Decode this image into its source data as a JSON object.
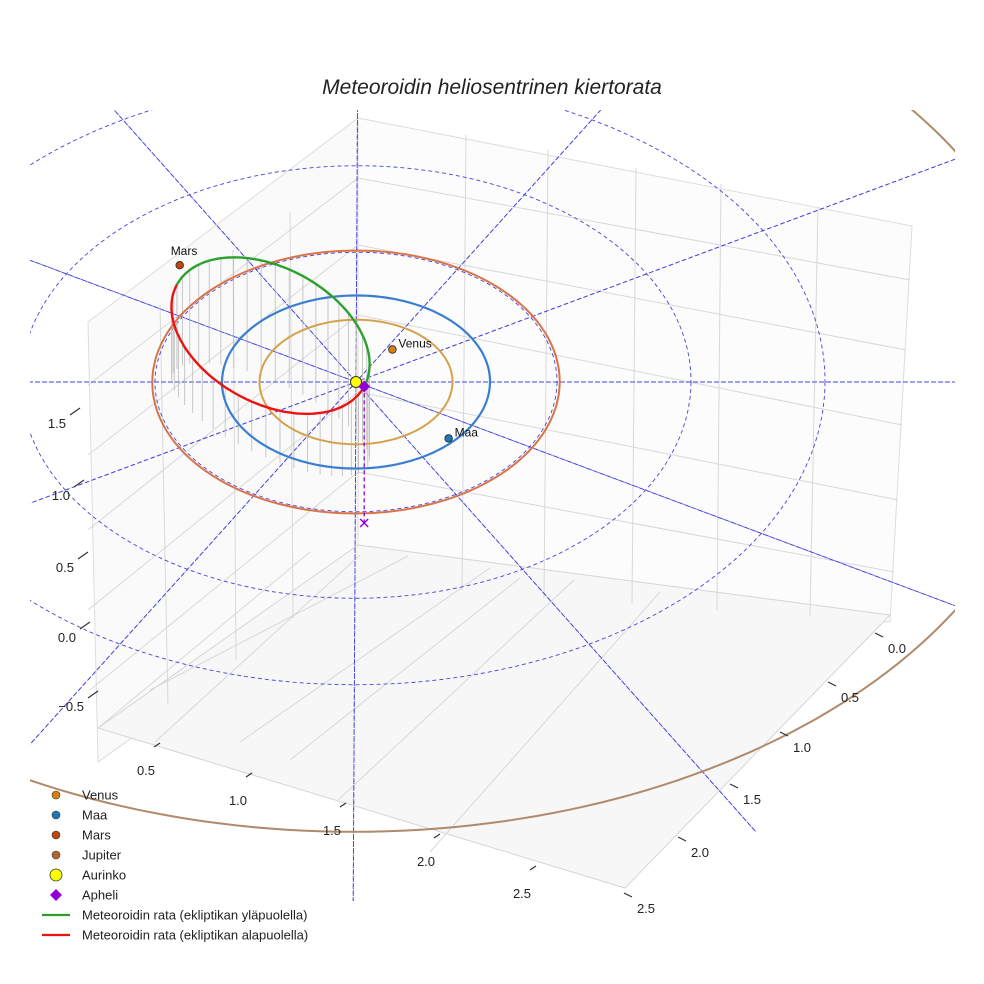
{
  "chart_data": {
    "type": "3d-orbit",
    "title": "Meteoroidin heliosentrinen kiertorata",
    "axes": {
      "x_ticks": [
        "0.5",
        "1.0",
        "1.5",
        "2.0",
        "2.5"
      ],
      "y_ticks": [
        "0.0",
        "0.5",
        "1.0",
        "1.5",
        "2.0",
        "2.5"
      ],
      "z_ticks": [
        "−0.5",
        "0.0",
        "0.5",
        "1.0",
        "1.5"
      ]
    },
    "orbits": [
      {
        "name": "Venus orbit",
        "radius_au": 0.72,
        "color": "#d4a24c"
      },
      {
        "name": "Maa orbit",
        "radius_au": 1.0,
        "color": "#3a7fcf"
      },
      {
        "name": "Mars orbit",
        "radius_au": 1.52,
        "color": "#d9734a"
      },
      {
        "name": "Jupiter orbit",
        "radius_au": 5.2,
        "color": "#b08a6a"
      }
    ],
    "bodies": [
      {
        "name": "Venus",
        "label": "Venus",
        "color": "#d4820c"
      },
      {
        "name": "Maa",
        "label": "Maa",
        "color": "#1f77b4"
      },
      {
        "name": "Mars",
        "label": "Mars",
        "color": "#c1440e"
      }
    ],
    "meteoroid": {
      "perihelion_au": 0.08,
      "aphelion_au": 1.75
    },
    "legend": [
      {
        "label": "Venus",
        "marker": "dot",
        "color": "#d4820c"
      },
      {
        "label": "Maa",
        "marker": "dot",
        "color": "#1f77b4"
      },
      {
        "label": "Mars",
        "marker": "dot",
        "color": "#c1440e"
      },
      {
        "label": "Jupiter",
        "marker": "dot",
        "color": "#b5652b"
      },
      {
        "label": "Aurinko",
        "marker": "sun",
        "color": "#ffff00"
      },
      {
        "label": "Apheli",
        "marker": "diamond",
        "color": "#9400d3"
      },
      {
        "label": "Meteoroidin rata (ekliptikan yläpuolella)",
        "marker": "line",
        "color": "#2ca02c"
      },
      {
        "label": "Meteoroidin rata (ekliptikan alapuolella)",
        "marker": "line",
        "color": "#ee1111"
      }
    ]
  }
}
